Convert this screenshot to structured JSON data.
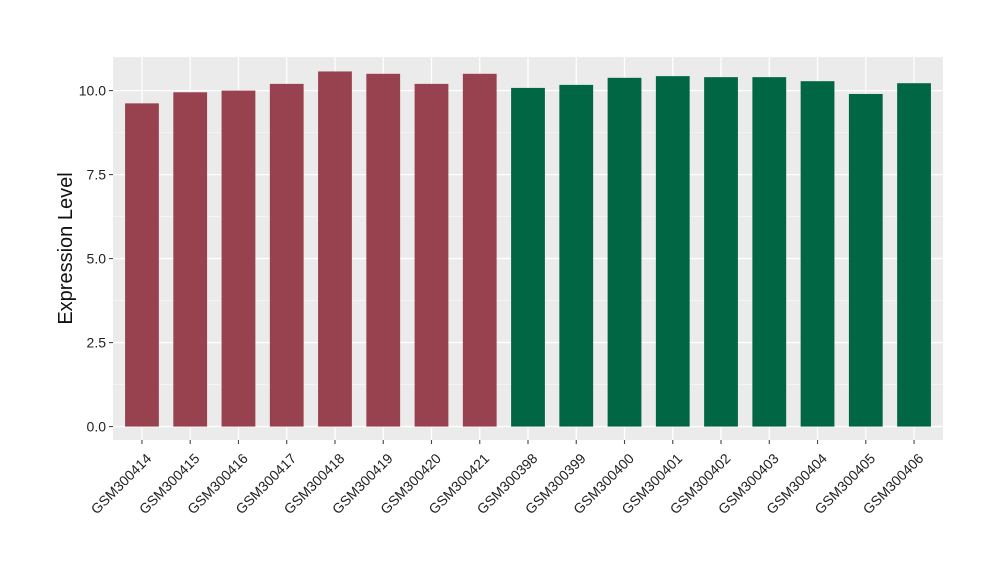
{
  "colors": {
    "panel_background": "#EBEBEB",
    "grid_major": "#FFFFFF",
    "grid_minor": "#F5F5F5",
    "tick_mark": "#444444",
    "series_colors": [
      "#98414F",
      "#006644"
    ]
  },
  "chart_data": {
    "type": "bar",
    "title": "",
    "xlabel": "",
    "ylabel": "Expression Level",
    "ylim": [
      -0.4,
      11.0
    ],
    "yticks": [
      0.0,
      2.5,
      5.0,
      7.5,
      10.0
    ],
    "ytick_labels": [
      "0.0",
      "2.5",
      "5.0",
      "7.5",
      "10.0"
    ],
    "grid": true,
    "legend": "none",
    "categories": [
      "GSM300414",
      "GSM300415",
      "GSM300416",
      "GSM300417",
      "GSM300418",
      "GSM300419",
      "GSM300420",
      "GSM300421",
      "GSM300398",
      "GSM300399",
      "GSM300400",
      "GSM300401",
      "GSM300402",
      "GSM300403",
      "GSM300404",
      "GSM300405",
      "GSM300406"
    ],
    "values": [
      9.62,
      9.95,
      10.0,
      10.2,
      10.57,
      10.5,
      10.2,
      10.5,
      10.08,
      10.17,
      10.38,
      10.43,
      10.4,
      10.4,
      10.28,
      9.9,
      10.22
    ],
    "bar_groups": [
      0,
      0,
      0,
      0,
      0,
      0,
      0,
      0,
      1,
      1,
      1,
      1,
      1,
      1,
      1,
      1,
      1
    ]
  }
}
